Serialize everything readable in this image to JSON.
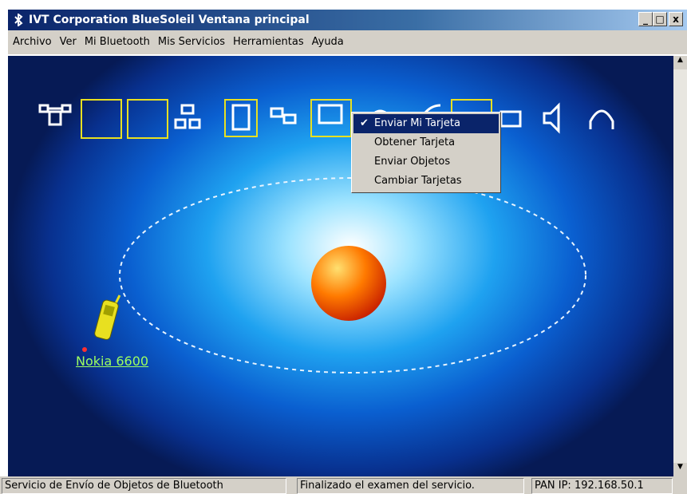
{
  "window": {
    "title": "IVT Corporation BlueSoleil Ventana principal"
  },
  "menu": [
    "Archivo",
    "Ver",
    "Mi Bluetooth",
    "Mis Servicios",
    "Herramientas",
    "Ayuda"
  ],
  "context_menu": {
    "items": [
      {
        "label": "Enviar Mi Tarjeta",
        "checked": true
      },
      {
        "label": "Obtener Tarjeta",
        "checked": false
      },
      {
        "label": "Enviar Objetos",
        "checked": false
      },
      {
        "label": "Cambiar Tarjetas",
        "checked": false
      }
    ]
  },
  "device": {
    "label": "Nokia 6600"
  },
  "status_bar": [
    "Servicio de Envío de Objetos de Bluetooth",
    "Finalizado el examen del servicio.",
    "PAN IP: 192.168.50.1"
  ]
}
